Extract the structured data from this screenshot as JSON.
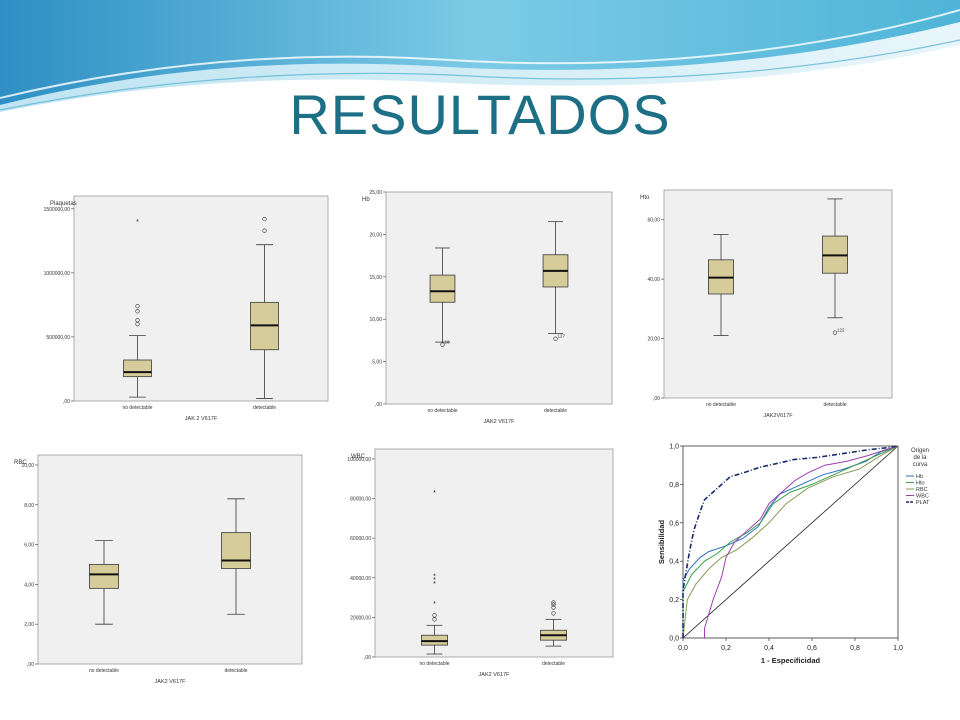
{
  "slide": {
    "title": "RESULTADOS"
  },
  "colors": {
    "title": "#1d6f86",
    "box_fill": "#d6cc9a",
    "box_stroke": "#3a3a3a",
    "plot_bg": "#f0f0f0"
  },
  "chart_data": [
    {
      "type": "box",
      "ylabel": "Plaquetas",
      "xlabel": "JAK 2 V617F",
      "categories": [
        "no detectable",
        "detectable"
      ],
      "ylim": [
        0,
        1600000
      ],
      "yticks": [
        0,
        500000,
        1000000,
        1500000
      ],
      "ytick_labels": [
        ",00",
        "500000,00",
        "1000000,00",
        "1500000,00"
      ],
      "boxes": [
        {
          "whisker_low": 30000,
          "q1": 190000,
          "median": 225000,
          "q3": 320000,
          "whisker_high": 510000,
          "outliers": [
            600000,
            630000,
            700000,
            740000
          ],
          "extremes": [
            1400000
          ]
        },
        {
          "whisker_low": 20000,
          "q1": 400000,
          "median": 590000,
          "q3": 770000,
          "whisker_high": 1220000,
          "outliers": [
            1330000,
            1420000
          ],
          "extremes": []
        }
      ]
    },
    {
      "type": "box",
      "ylabel": "Hb",
      "xlabel": "JAK2 V617F",
      "categories": [
        "no detectable",
        "detectable"
      ],
      "ylim": [
        0,
        25
      ],
      "yticks": [
        0,
        5,
        10,
        15,
        20,
        25
      ],
      "ytick_labels": [
        ",00",
        "5,00",
        "10,00",
        "15,00",
        "20,00",
        "25,00"
      ],
      "boxes": [
        {
          "whisker_low": 7.3,
          "q1": 12,
          "median": 13.3,
          "q3": 15.2,
          "whisker_high": 18.4,
          "outliers": [
            7.0
          ],
          "extremes": [],
          "labels": [
            "18"
          ]
        },
        {
          "whisker_low": 8.3,
          "q1": 13.8,
          "median": 15.7,
          "q3": 17.6,
          "whisker_high": 21.5,
          "outliers": [
            7.7
          ],
          "extremes": [],
          "labels": [
            "127"
          ]
        }
      ]
    },
    {
      "type": "box",
      "ylabel": "Hto",
      "xlabel": "JAK2V617F",
      "categories": [
        "no detectable",
        "detectable"
      ],
      "ylim": [
        0,
        70
      ],
      "yticks": [
        0,
        20,
        40,
        60
      ],
      "ytick_labels": [
        ",00",
        "20,00",
        "40,00",
        "60,00"
      ],
      "boxes": [
        {
          "whisker_low": 21,
          "q1": 35,
          "median": 40.5,
          "q3": 46.5,
          "whisker_high": 55,
          "outliers": [],
          "extremes": []
        },
        {
          "whisker_low": 27,
          "q1": 42,
          "median": 48,
          "q3": 54.5,
          "whisker_high": 67,
          "outliers": [
            22
          ],
          "extremes": [],
          "labels": [
            "122"
          ]
        }
      ]
    },
    {
      "type": "box",
      "ylabel": "RBC",
      "xlabel": "JAK2 V617F",
      "categories": [
        "no detectable",
        "detectable"
      ],
      "ylim": [
        0,
        10.5
      ],
      "yticks": [
        0,
        2,
        4,
        6,
        8,
        10
      ],
      "ytick_labels": [
        ",00",
        "2,00",
        "4,00",
        "6,00",
        "8,00",
        "10,00"
      ],
      "boxes": [
        {
          "whisker_low": 2.0,
          "q1": 3.8,
          "median": 4.5,
          "q3": 5.0,
          "whisker_high": 6.2,
          "outliers": [],
          "extremes": []
        },
        {
          "whisker_low": 2.5,
          "q1": 4.8,
          "median": 5.2,
          "q3": 6.6,
          "whisker_high": 8.3,
          "outliers": [],
          "extremes": []
        }
      ]
    },
    {
      "type": "box",
      "ylabel": "WBC",
      "xlabel": "JAK2 V617F",
      "categories": [
        "no detectable",
        "detectable"
      ],
      "ylim": [
        0,
        105000
      ],
      "yticks": [
        0,
        20000,
        40000,
        60000,
        80000,
        100000
      ],
      "ytick_labels": [
        ",00",
        "20000,00",
        "40000,00",
        "60000,00",
        "80000,00",
        "100000,00"
      ],
      "boxes": [
        {
          "whisker_low": 1500,
          "q1": 6000,
          "median": 8000,
          "q3": 11000,
          "whisker_high": 16000,
          "outliers": [
            19000,
            21000
          ],
          "extremes": [
            27000,
            37000,
            39000,
            41000,
            83000
          ]
        },
        {
          "whisker_low": 5500,
          "q1": 8500,
          "median": 11000,
          "q3": 13500,
          "whisker_high": 19000,
          "outliers": [
            22000,
            25000,
            26500,
            27500
          ],
          "extremes": []
        }
      ]
    },
    {
      "type": "line",
      "xlabel": "1 - Especificidad",
      "ylabel": "Sensibilidad",
      "xlim": [
        0,
        1
      ],
      "ylim": [
        0,
        1
      ],
      "ticks": [
        0,
        0.2,
        0.4,
        0.6,
        0.8,
        1.0
      ],
      "tick_labels": [
        "0,0",
        "0,2",
        "0,4",
        "0,6",
        "0,8",
        "1,0"
      ],
      "legend_title": "Origen de la curva",
      "legend_position": "right",
      "reference_line": true,
      "series": [
        {
          "name": "Hb",
          "color": "#2a6fbe",
          "dash": false,
          "x": [
            0,
            0,
            0.03,
            0.08,
            0.12,
            0.2,
            0.28,
            0.35,
            0.4,
            0.45,
            0.55,
            0.65,
            0.75,
            0.85,
            0.92,
            1
          ],
          "y": [
            0,
            0.3,
            0.36,
            0.42,
            0.45,
            0.48,
            0.52,
            0.58,
            0.68,
            0.75,
            0.8,
            0.85,
            0.88,
            0.92,
            0.97,
            1
          ]
        },
        {
          "name": "Hto",
          "color": "#3aa04a",
          "dash": false,
          "x": [
            0,
            0,
            0.04,
            0.1,
            0.16,
            0.22,
            0.3,
            0.36,
            0.42,
            0.5,
            0.6,
            0.7,
            0.8,
            0.9,
            1
          ],
          "y": [
            0,
            0.24,
            0.33,
            0.4,
            0.44,
            0.5,
            0.55,
            0.6,
            0.7,
            0.76,
            0.8,
            0.85,
            0.9,
            0.95,
            1
          ]
        },
        {
          "name": "RBC",
          "color": "#8a9a5a",
          "dash": false,
          "x": [
            0,
            0.02,
            0.06,
            0.12,
            0.18,
            0.25,
            0.32,
            0.4,
            0.48,
            0.58,
            0.7,
            0.82,
            0.92,
            1
          ],
          "y": [
            0,
            0.2,
            0.28,
            0.36,
            0.42,
            0.46,
            0.52,
            0.6,
            0.7,
            0.78,
            0.84,
            0.88,
            0.95,
            1
          ]
        },
        {
          "name": "WBC",
          "color": "#9b3fae",
          "dash": false,
          "x": [
            0.1,
            0.1,
            0.14,
            0.18,
            0.2,
            0.24,
            0.3,
            0.36,
            0.4,
            0.46,
            0.52,
            0.58,
            0.66,
            0.76,
            0.86,
            0.94,
            1
          ],
          "y": [
            0,
            0.05,
            0.2,
            0.32,
            0.42,
            0.5,
            0.56,
            0.62,
            0.7,
            0.76,
            0.82,
            0.86,
            0.9,
            0.92,
            0.95,
            0.98,
            1
          ]
        },
        {
          "name": "PLAT",
          "color": "#1a2a6e",
          "dash": true,
          "x": [
            0,
            0,
            0.03,
            0.05,
            0.08,
            0.1,
            0.14,
            0.18,
            0.22,
            0.28,
            0.36,
            0.44,
            0.52,
            0.62,
            0.74,
            0.86,
            0.94,
            1
          ],
          "y": [
            0,
            0.25,
            0.45,
            0.56,
            0.66,
            0.72,
            0.76,
            0.8,
            0.84,
            0.86,
            0.89,
            0.91,
            0.93,
            0.94,
            0.96,
            0.98,
            0.99,
            1
          ]
        }
      ]
    }
  ]
}
